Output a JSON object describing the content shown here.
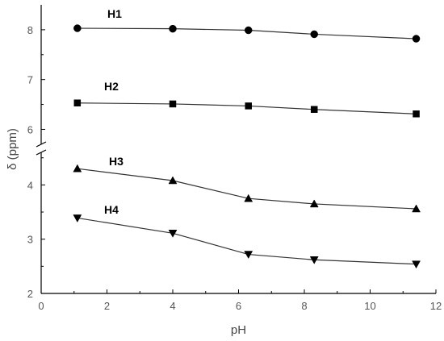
{
  "chart_data": {
    "type": "line",
    "title": "",
    "xlabel": "pH",
    "ylabel": "δ (ppm)",
    "xlim": [
      0,
      12
    ],
    "ylim": [
      2,
      8.5
    ],
    "y_axis_break": [
      4.6,
      5.7
    ],
    "x_ticks": [
      "0",
      "2",
      "4",
      "6",
      "8",
      "10",
      "12"
    ],
    "y_ticks": [
      "2",
      "3",
      "4",
      "6",
      "7",
      "8"
    ],
    "grid": false,
    "legend": "none",
    "x": [
      1.1,
      4.0,
      6.3,
      8.3,
      11.4
    ],
    "series": [
      {
        "name": "H1",
        "marker": "circle",
        "values": [
          8.03,
          8.02,
          7.99,
          7.91,
          7.82
        ]
      },
      {
        "name": "H2",
        "marker": "square",
        "values": [
          6.53,
          6.51,
          6.47,
          6.4,
          6.31
        ]
      },
      {
        "name": "H3",
        "marker": "triangle-up",
        "values": [
          4.3,
          4.08,
          3.75,
          3.65,
          3.56
        ]
      },
      {
        "name": "H4",
        "marker": "triangle-down",
        "values": [
          3.39,
          3.11,
          2.72,
          2.62,
          2.54
        ]
      }
    ]
  }
}
